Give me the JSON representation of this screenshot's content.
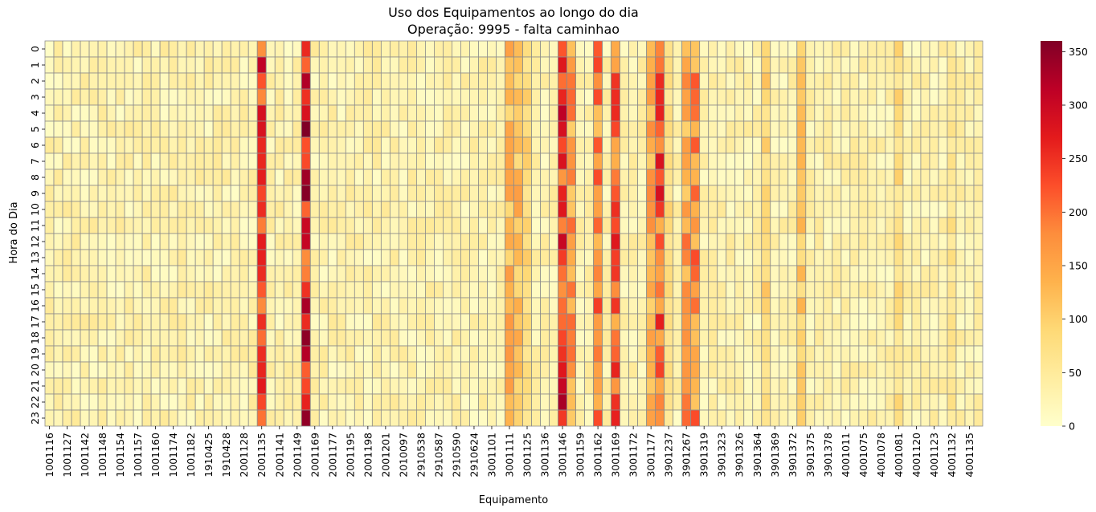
{
  "chart_data": {
    "type": "heatmap",
    "title": "Uso dos Equipamentos ao longo do dia",
    "subtitle": "Operação: 9995 - falta caminhao",
    "xlabel": "Equipamento",
    "ylabel": "Hora do Dia",
    "y_categories": [
      "0",
      "1",
      "2",
      "3",
      "4",
      "5",
      "6",
      "7",
      "8",
      "9",
      "10",
      "11",
      "12",
      "13",
      "14",
      "15",
      "16",
      "17",
      "18",
      "19",
      "20",
      "21",
      "22",
      "23"
    ],
    "x_tick_labels": [
      "1001116",
      "1001127",
      "1001142",
      "1001148",
      "1001154",
      "1001157",
      "1001160",
      "1001174",
      "1001182",
      "1910425",
      "1910428",
      "2001128",
      "2001135",
      "2001141",
      "2001149",
      "2001169",
      "2001177",
      "2001195",
      "2001198",
      "2001201",
      "2010097",
      "2910538",
      "2910587",
      "2910590",
      "2910624",
      "3001101",
      "3001111",
      "3001125",
      "3001136",
      "3001146",
      "3001159",
      "3001162",
      "3001169",
      "3001172",
      "3001177",
      "3901237",
      "3901267",
      "3901319",
      "3901323",
      "3901326",
      "3901364",
      "3901369",
      "3901372",
      "3901375",
      "3901378",
      "4001011",
      "4001075",
      "4001078",
      "4001081",
      "4001120",
      "4001123",
      "4001132",
      "4001135"
    ],
    "num_columns": 106,
    "x_tick_every": 2,
    "colorbar": {
      "min": 0,
      "max": 360,
      "ticks": [
        0,
        50,
        100,
        150,
        200,
        250,
        300,
        350
      ],
      "colormap": "YlOrRd",
      "stops": [
        "#ffffcc",
        "#ffeda0",
        "#fed976",
        "#feb24c",
        "#fd8d3c",
        "#fc4e2a",
        "#e31a1c",
        "#bd0026",
        "#800026"
      ]
    },
    "column_profiles": {
      "base": 30,
      "hot_columns": [
        {
          "col": 24,
          "value": 280
        },
        {
          "col": 29,
          "value": 320
        },
        {
          "col": 52,
          "value": 150
        },
        {
          "col": 53,
          "value": 140
        },
        {
          "col": 54,
          "value": 100
        },
        {
          "col": 58,
          "value": 300
        },
        {
          "col": 59,
          "value": 180
        },
        {
          "col": 62,
          "value": 210
        },
        {
          "col": 64,
          "value": 240
        },
        {
          "col": 68,
          "value": 160
        },
        {
          "col": 69,
          "value": 250
        },
        {
          "col": 70,
          "value": 90
        },
        {
          "col": 72,
          "value": 180
        },
        {
          "col": 73,
          "value": 200
        },
        {
          "col": 81,
          "value": 110
        },
        {
          "col": 85,
          "value": 120
        },
        {
          "col": 96,
          "value": 90
        },
        {
          "col": 102,
          "value": 80
        }
      ]
    }
  }
}
